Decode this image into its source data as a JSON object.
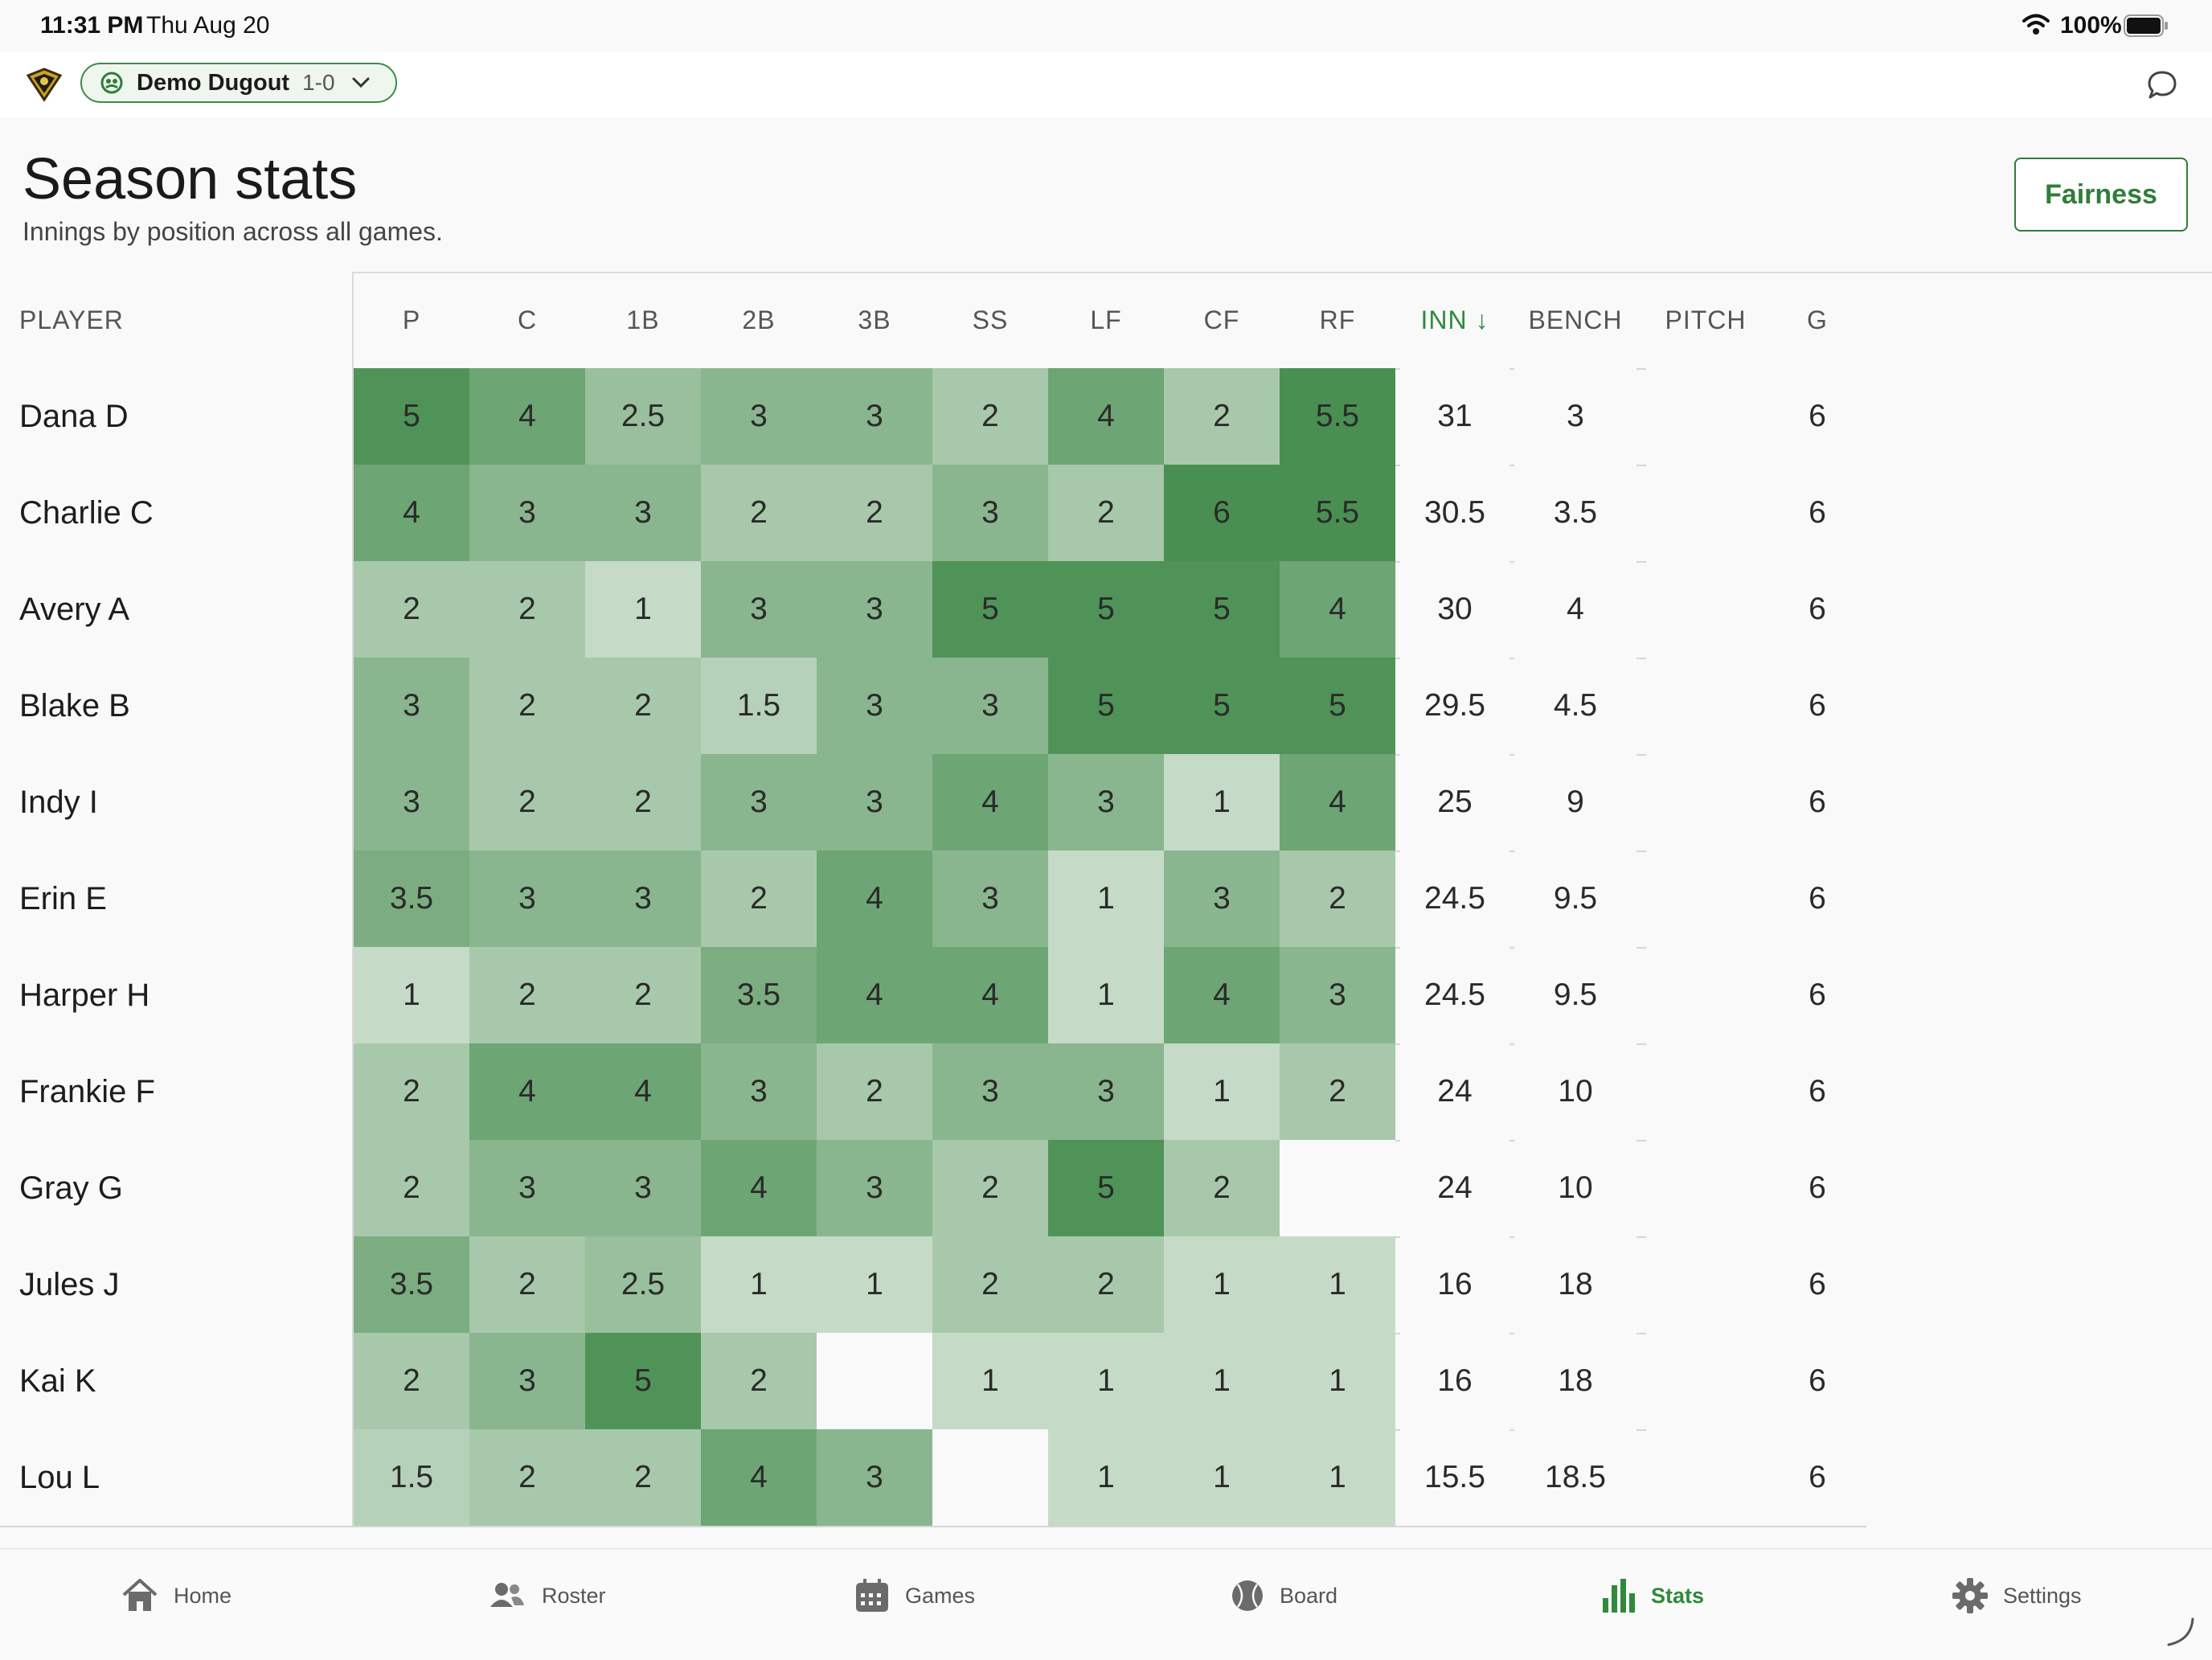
{
  "status_bar": {
    "time": "11:31 PM",
    "date": "Thu Aug 20",
    "battery": "100%"
  },
  "topbar": {
    "team_name": "Demo Dugout",
    "team_record": "1-0"
  },
  "page": {
    "title": "Season stats",
    "subtitle": "Innings by position across all games.",
    "fairness_label": "Fairness"
  },
  "table": {
    "player_header": "PLAYER",
    "position_headers": [
      "P",
      "C",
      "1B",
      "2B",
      "3B",
      "SS",
      "LF",
      "CF",
      "RF"
    ],
    "total_headers": [
      "INN ↓",
      "BENCH",
      "PITCH",
      "G"
    ],
    "sorted_column": "INN",
    "rows": [
      {
        "player": "Dana D",
        "pos": [
          "5",
          "4",
          "2.5",
          "3",
          "3",
          "2",
          "4",
          "2",
          "5.5"
        ],
        "inn": "31",
        "bench": "3",
        "pitch": "",
        "g": "6"
      },
      {
        "player": "Charlie C",
        "pos": [
          "4",
          "3",
          "3",
          "2",
          "2",
          "3",
          "2",
          "6",
          "5.5"
        ],
        "inn": "30.5",
        "bench": "3.5",
        "pitch": "",
        "g": "6"
      },
      {
        "player": "Avery A",
        "pos": [
          "2",
          "2",
          "1",
          "3",
          "3",
          "5",
          "5",
          "5",
          "4"
        ],
        "inn": "30",
        "bench": "4",
        "pitch": "",
        "g": "6"
      },
      {
        "player": "Blake B",
        "pos": [
          "3",
          "2",
          "2",
          "1.5",
          "3",
          "3",
          "5",
          "5",
          "5"
        ],
        "inn": "29.5",
        "bench": "4.5",
        "pitch": "",
        "g": "6"
      },
      {
        "player": "Indy I",
        "pos": [
          "3",
          "2",
          "2",
          "3",
          "3",
          "4",
          "3",
          "1",
          "4"
        ],
        "inn": "25",
        "bench": "9",
        "pitch": "",
        "g": "6"
      },
      {
        "player": "Erin E",
        "pos": [
          "3.5",
          "3",
          "3",
          "2",
          "4",
          "3",
          "1",
          "3",
          "2"
        ],
        "inn": "24.5",
        "bench": "9.5",
        "pitch": "",
        "g": "6"
      },
      {
        "player": "Harper H",
        "pos": [
          "1",
          "2",
          "2",
          "3.5",
          "4",
          "4",
          "1",
          "4",
          "3"
        ],
        "inn": "24.5",
        "bench": "9.5",
        "pitch": "",
        "g": "6"
      },
      {
        "player": "Frankie F",
        "pos": [
          "2",
          "4",
          "4",
          "3",
          "2",
          "3",
          "3",
          "1",
          "2"
        ],
        "inn": "24",
        "bench": "10",
        "pitch": "",
        "g": "6"
      },
      {
        "player": "Gray G",
        "pos": [
          "2",
          "3",
          "3",
          "4",
          "3",
          "2",
          "5",
          "2",
          ""
        ],
        "inn": "24",
        "bench": "10",
        "pitch": "",
        "g": "6"
      },
      {
        "player": "Jules J",
        "pos": [
          "3.5",
          "2",
          "2.5",
          "1",
          "1",
          "2",
          "2",
          "1",
          "1"
        ],
        "inn": "16",
        "bench": "18",
        "pitch": "",
        "g": "6"
      },
      {
        "player": "Kai K",
        "pos": [
          "2",
          "3",
          "5",
          "2",
          "",
          "1",
          "1",
          "1",
          "1"
        ],
        "inn": "16",
        "bench": "18",
        "pitch": "",
        "g": "6"
      },
      {
        "player": "Lou L",
        "pos": [
          "1.5",
          "2",
          "2",
          "4",
          "3",
          "",
          "1",
          "1",
          "1"
        ],
        "inn": "15.5",
        "bench": "18.5",
        "pitch": "",
        "g": "6"
      }
    ]
  },
  "tabs": [
    {
      "label": "Home",
      "icon": "house-icon",
      "active": false
    },
    {
      "label": "Roster",
      "icon": "people-icon",
      "active": false
    },
    {
      "label": "Games",
      "icon": "calendar-icon",
      "active": false
    },
    {
      "label": "Board",
      "icon": "baseball-icon",
      "active": false
    },
    {
      "label": "Stats",
      "icon": "bar-chart-icon",
      "active": true
    },
    {
      "label": "Settings",
      "icon": "gear-icon",
      "active": false
    }
  ],
  "colors": {
    "accent": "#2f8a3c",
    "heat_max": "#4a8f52"
  }
}
